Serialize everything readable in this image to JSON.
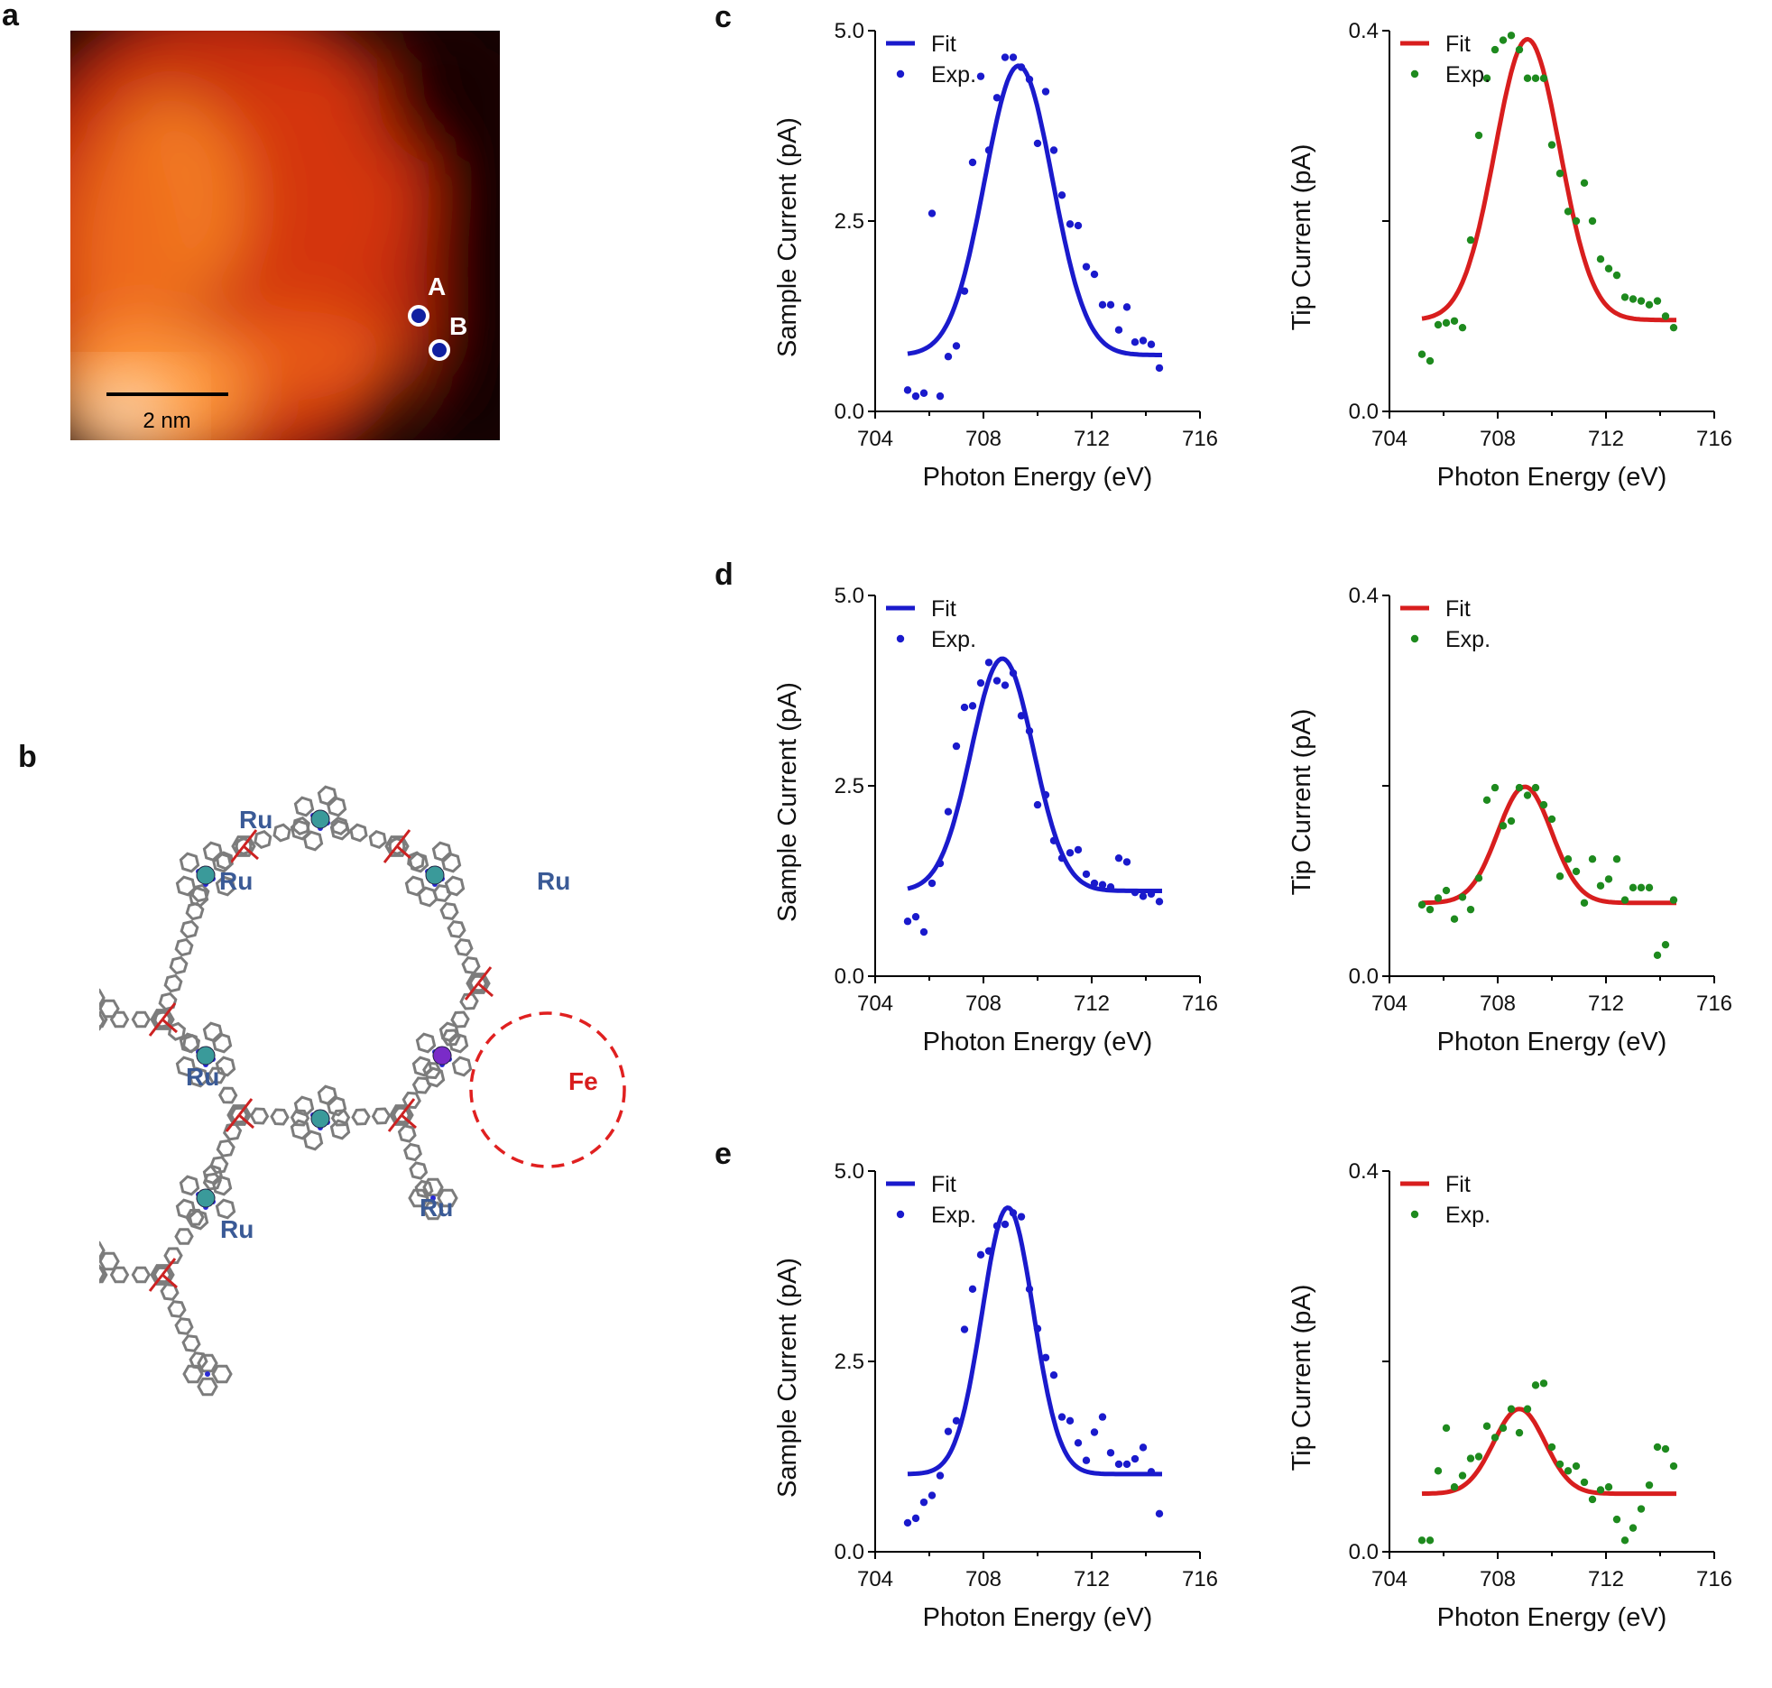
{
  "panel_labels": {
    "a": "a",
    "b": "b",
    "c": "c",
    "d": "d",
    "e": "e"
  },
  "stm_image": {
    "markers": [
      {
        "label": "A"
      },
      {
        "label": "B"
      }
    ],
    "scalebar_label": "2 nm",
    "colors": {
      "dark": "#160505",
      "mid": "#d63a0c",
      "bright": "#ff9838",
      "highlight": "#fde7d2",
      "marker_fill": "#1020a0",
      "marker_ring": "#ffffff"
    }
  },
  "molecule": {
    "ru_labels": [
      "Ru",
      "Ru",
      "Ru",
      "Ru",
      "Ru",
      "Ru"
    ],
    "fe_label": "Fe",
    "colors": {
      "ru_label": "#3a5a96",
      "fe_label": "#d81e1e",
      "bond": "#7c7c7c",
      "nitrogen": "#2a2ad6",
      "oxygen": "#cc2222",
      "ru_atom": "#3a9a9a",
      "fe_atom": "#7a2bc8",
      "circle": "#e02020"
    }
  },
  "chart_data": [
    {
      "id": "c-sample",
      "type": "scatter",
      "xlabel": "Photon Energy (eV)",
      "ylabel": "Sample Current (pA)",
      "xlim": [
        704,
        716
      ],
      "ylim": [
        0,
        5
      ],
      "xticks": [
        "704",
        "708",
        "712",
        "716"
      ],
      "yticks": [
        "0.0",
        "2.5",
        "5.0"
      ],
      "legend": [
        "Fit",
        "Exp."
      ],
      "legend_position": "top-left",
      "fit_color": "#1a1acc",
      "exp_color": "#1a1acc",
      "fit": {
        "amplitude": 3.8,
        "center": 709.3,
        "sigma": 1.25,
        "baseline": 0.74,
        "x_range": [
          705.2,
          714.6
        ]
      },
      "exp": [
        [
          705.2,
          0.28
        ],
        [
          705.5,
          0.2
        ],
        [
          705.8,
          0.24
        ],
        [
          706.1,
          2.6
        ],
        [
          706.4,
          0.2
        ],
        [
          706.7,
          0.72
        ],
        [
          707.0,
          0.86
        ],
        [
          707.3,
          1.58
        ],
        [
          707.6,
          3.27
        ],
        [
          707.9,
          4.4
        ],
        [
          708.2,
          3.43
        ],
        [
          708.5,
          4.12
        ],
        [
          708.8,
          4.65
        ],
        [
          709.1,
          4.65
        ],
        [
          709.4,
          4.52
        ],
        [
          709.7,
          4.36
        ],
        [
          710.0,
          3.52
        ],
        [
          710.3,
          4.2
        ],
        [
          710.6,
          3.43
        ],
        [
          710.9,
          2.84
        ],
        [
          711.2,
          2.46
        ],
        [
          711.5,
          2.44
        ],
        [
          711.8,
          1.9
        ],
        [
          712.1,
          1.8
        ],
        [
          712.4,
          1.4
        ],
        [
          712.7,
          1.4
        ],
        [
          713.0,
          1.07
        ],
        [
          713.3,
          1.37
        ],
        [
          713.6,
          0.91
        ],
        [
          713.9,
          0.93
        ],
        [
          714.2,
          0.88
        ],
        [
          714.5,
          0.57
        ]
      ]
    },
    {
      "id": "c-tip",
      "type": "scatter",
      "xlabel": "Photon Energy (eV)",
      "ylabel": "Tip Current (pA)",
      "xlim": [
        704,
        716
      ],
      "ylim": [
        0,
        0.4
      ],
      "xticks": [
        "704",
        "708",
        "712",
        "716"
      ],
      "yticks": [
        "0.0",
        "0.4"
      ],
      "legend": [
        "Fit",
        "Exp."
      ],
      "legend_position": "top-left",
      "fit_color": "#d81e1e",
      "exp_color": "#1e8a1e",
      "fit": {
        "amplitude": 0.295,
        "center": 709.1,
        "sigma": 1.2,
        "baseline": 0.096,
        "x_range": [
          705.2,
          714.6
        ]
      },
      "exp": [
        [
          705.2,
          0.06
        ],
        [
          705.5,
          0.053
        ],
        [
          705.8,
          0.091
        ],
        [
          706.1,
          0.093
        ],
        [
          706.4,
          0.095
        ],
        [
          706.7,
          0.088
        ],
        [
          707.0,
          0.18
        ],
        [
          707.3,
          0.29
        ],
        [
          707.6,
          0.35
        ],
        [
          707.9,
          0.38
        ],
        [
          708.2,
          0.39
        ],
        [
          708.5,
          0.395
        ],
        [
          708.8,
          0.38
        ],
        [
          709.1,
          0.35
        ],
        [
          709.4,
          0.35
        ],
        [
          709.7,
          0.35
        ],
        [
          710.0,
          0.28
        ],
        [
          710.3,
          0.25
        ],
        [
          710.6,
          0.21
        ],
        [
          710.9,
          0.2
        ],
        [
          711.2,
          0.24
        ],
        [
          711.5,
          0.2
        ],
        [
          711.8,
          0.16
        ],
        [
          712.1,
          0.15
        ],
        [
          712.4,
          0.143
        ],
        [
          712.7,
          0.12
        ],
        [
          713.0,
          0.118
        ],
        [
          713.3,
          0.116
        ],
        [
          713.6,
          0.112
        ],
        [
          713.9,
          0.116
        ],
        [
          714.2,
          0.1
        ],
        [
          714.5,
          0.088
        ]
      ]
    },
    {
      "id": "d-sample",
      "type": "scatter",
      "xlabel": "Photon Energy (eV)",
      "ylabel": "Sample Current (pA)",
      "xlim": [
        704,
        716
      ],
      "ylim": [
        0,
        5
      ],
      "xticks": [
        "704",
        "708",
        "712",
        "716"
      ],
      "yticks": [
        "0.0",
        "2.5",
        "5.0"
      ],
      "legend": [
        "Fit",
        "Exp."
      ],
      "legend_position": "top-left",
      "fit_color": "#1a1acc",
      "exp_color": "#1a1acc",
      "fit": {
        "amplitude": 3.05,
        "center": 708.7,
        "sigma": 1.15,
        "baseline": 1.12,
        "x_range": [
          705.2,
          714.6
        ]
      },
      "exp": [
        [
          705.2,
          0.72
        ],
        [
          705.5,
          0.78
        ],
        [
          705.8,
          0.58
        ],
        [
          706.1,
          1.22
        ],
        [
          706.4,
          1.48
        ],
        [
          706.7,
          2.16
        ],
        [
          707.0,
          3.02
        ],
        [
          707.3,
          3.53
        ],
        [
          707.6,
          3.55
        ],
        [
          707.9,
          3.85
        ],
        [
          708.2,
          4.12
        ],
        [
          708.5,
          3.88
        ],
        [
          708.8,
          3.82
        ],
        [
          709.1,
          3.98
        ],
        [
          709.4,
          3.42
        ],
        [
          709.7,
          3.22
        ],
        [
          710.0,
          2.25
        ],
        [
          710.3,
          2.38
        ],
        [
          710.6,
          1.78
        ],
        [
          710.9,
          1.55
        ],
        [
          711.2,
          1.62
        ],
        [
          711.5,
          1.66
        ],
        [
          711.8,
          1.34
        ],
        [
          712.1,
          1.22
        ],
        [
          712.4,
          1.2
        ],
        [
          712.7,
          1.17
        ],
        [
          713.0,
          1.55
        ],
        [
          713.3,
          1.5
        ],
        [
          713.6,
          1.1
        ],
        [
          713.9,
          1.05
        ],
        [
          714.2,
          1.08
        ],
        [
          714.5,
          0.98
        ]
      ]
    },
    {
      "id": "d-tip",
      "type": "scatter",
      "xlabel": "Photon Energy (eV)",
      "ylabel": "Tip Current (pA)",
      "xlim": [
        704,
        716
      ],
      "ylim": [
        0,
        0.4
      ],
      "xticks": [
        "704",
        "708",
        "712",
        "716"
      ],
      "yticks": [
        "0.0",
        "0.4"
      ],
      "legend": [
        "Fit",
        "Exp."
      ],
      "legend_position": "top-left",
      "fit_color": "#d81e1e",
      "exp_color": "#1e8a1e",
      "fit": {
        "amplitude": 0.122,
        "center": 709.0,
        "sigma": 1.0,
        "baseline": 0.077,
        "x_range": [
          705.2,
          714.6
        ]
      },
      "exp": [
        [
          705.2,
          0.075
        ],
        [
          705.5,
          0.07
        ],
        [
          705.8,
          0.082
        ],
        [
          706.1,
          0.09
        ],
        [
          706.4,
          0.06
        ],
        [
          706.7,
          0.083
        ],
        [
          707.0,
          0.07
        ],
        [
          707.3,
          0.103
        ],
        [
          707.6,
          0.185
        ],
        [
          707.9,
          0.198
        ],
        [
          708.2,
          0.158
        ],
        [
          708.5,
          0.163
        ],
        [
          708.8,
          0.198
        ],
        [
          709.1,
          0.19
        ],
        [
          709.4,
          0.198
        ],
        [
          709.7,
          0.18
        ],
        [
          710.0,
          0.165
        ],
        [
          710.3,
          0.105
        ],
        [
          710.6,
          0.123
        ],
        [
          710.9,
          0.11
        ],
        [
          711.2,
          0.077
        ],
        [
          711.5,
          0.123
        ],
        [
          711.8,
          0.095
        ],
        [
          712.1,
          0.102
        ],
        [
          712.4,
          0.123
        ],
        [
          712.7,
          0.08
        ],
        [
          713.0,
          0.093
        ],
        [
          713.3,
          0.093
        ],
        [
          713.6,
          0.093
        ],
        [
          713.9,
          0.022
        ],
        [
          714.2,
          0.033
        ],
        [
          714.5,
          0.08
        ]
      ]
    },
    {
      "id": "e-sample",
      "type": "scatter",
      "xlabel": "Photon Energy (eV)",
      "ylabel": "Sample Current (pA)",
      "xlim": [
        704,
        716
      ],
      "ylim": [
        0,
        5
      ],
      "xticks": [
        "704",
        "708",
        "712",
        "716"
      ],
      "yticks": [
        "0.0",
        "2.5",
        "5.0"
      ],
      "legend": [
        "Fit",
        "Exp."
      ],
      "legend_position": "top-left",
      "fit_color": "#1a1acc",
      "exp_color": "#1a1acc",
      "fit": {
        "amplitude": 3.5,
        "center": 708.9,
        "sigma": 0.95,
        "baseline": 1.02,
        "x_range": [
          705.2,
          714.6
        ]
      },
      "exp": [
        [
          705.2,
          0.38
        ],
        [
          705.5,
          0.44
        ],
        [
          705.8,
          0.65
        ],
        [
          706.1,
          0.74
        ],
        [
          706.4,
          1.0
        ],
        [
          706.7,
          1.58
        ],
        [
          707.0,
          1.72
        ],
        [
          707.3,
          2.92
        ],
        [
          707.6,
          3.45
        ],
        [
          707.9,
          3.9
        ],
        [
          708.2,
          3.95
        ],
        [
          708.5,
          4.28
        ],
        [
          708.8,
          4.3
        ],
        [
          709.1,
          4.45
        ],
        [
          709.4,
          4.4
        ],
        [
          709.7,
          3.45
        ],
        [
          710.0,
          2.93
        ],
        [
          710.3,
          2.55
        ],
        [
          710.6,
          2.32
        ],
        [
          710.9,
          1.77
        ],
        [
          711.2,
          1.72
        ],
        [
          711.5,
          1.43
        ],
        [
          711.8,
          1.2
        ],
        [
          712.1,
          1.57
        ],
        [
          712.4,
          1.77
        ],
        [
          712.7,
          1.3
        ],
        [
          713.0,
          1.15
        ],
        [
          713.3,
          1.15
        ],
        [
          713.6,
          1.22
        ],
        [
          713.9,
          1.37
        ],
        [
          714.2,
          1.05
        ],
        [
          714.5,
          0.5
        ]
      ]
    },
    {
      "id": "e-tip",
      "type": "scatter",
      "xlabel": "Photon Energy (eV)",
      "ylabel": "Tip Current (pA)",
      "xlim": [
        704,
        716
      ],
      "ylim": [
        0,
        0.4
      ],
      "xticks": [
        "704",
        "708",
        "712",
        "716"
      ],
      "yticks": [
        "0.0",
        "0.4"
      ],
      "legend": [
        "Fit",
        "Exp."
      ],
      "legend_position": "top-left",
      "fit_color": "#d81e1e",
      "exp_color": "#1e8a1e",
      "fit": {
        "amplitude": 0.089,
        "center": 708.8,
        "sigma": 0.95,
        "baseline": 0.061,
        "x_range": [
          705.2,
          714.6
        ]
      },
      "exp": [
        [
          705.2,
          0.012
        ],
        [
          705.5,
          0.012
        ],
        [
          705.8,
          0.085
        ],
        [
          706.1,
          0.13
        ],
        [
          706.4,
          0.068
        ],
        [
          706.7,
          0.08
        ],
        [
          707.0,
          0.098
        ],
        [
          707.3,
          0.1
        ],
        [
          707.6,
          0.132
        ],
        [
          707.9,
          0.12
        ],
        [
          708.2,
          0.13
        ],
        [
          708.5,
          0.15
        ],
        [
          708.8,
          0.125
        ],
        [
          709.1,
          0.15
        ],
        [
          709.4,
          0.175
        ],
        [
          709.7,
          0.177
        ],
        [
          710.0,
          0.11
        ],
        [
          710.3,
          0.092
        ],
        [
          710.6,
          0.085
        ],
        [
          710.9,
          0.09
        ],
        [
          711.2,
          0.073
        ],
        [
          711.5,
          0.055
        ],
        [
          711.8,
          0.065
        ],
        [
          712.1,
          0.068
        ],
        [
          712.4,
          0.034
        ],
        [
          712.7,
          0.012
        ],
        [
          713.0,
          0.025
        ],
        [
          713.3,
          0.045
        ],
        [
          713.6,
          0.07
        ],
        [
          713.9,
          0.11
        ],
        [
          714.2,
          0.108
        ],
        [
          714.5,
          0.09
        ]
      ]
    }
  ]
}
